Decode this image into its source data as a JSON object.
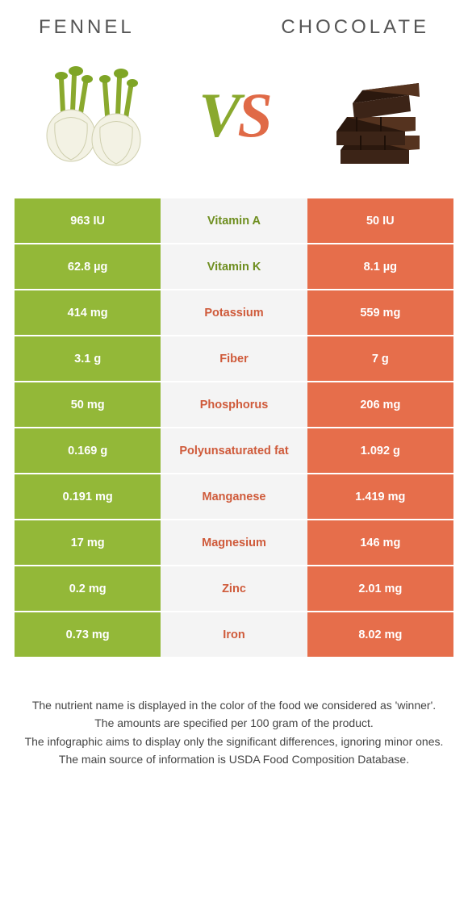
{
  "header": {
    "left": "Fennel",
    "right": "Chocolate"
  },
  "vs": {
    "v": "V",
    "s": "S"
  },
  "colors": {
    "fennel_bg": "#93b838",
    "chocolate_bg": "#e66e4b",
    "fennel_fg": "#6e8e1f",
    "chocolate_fg": "#cf5a3a",
    "mid_bg": "#f4f4f4",
    "page_bg": "#ffffff"
  },
  "table": {
    "rows": [
      {
        "nutrient": "Vitamin A",
        "left": "963 IU",
        "right": "50 IU",
        "winner": "fennel"
      },
      {
        "nutrient": "Vitamin K",
        "left": "62.8 µg",
        "right": "8.1 µg",
        "winner": "fennel"
      },
      {
        "nutrient": "Potassium",
        "left": "414 mg",
        "right": "559 mg",
        "winner": "chocolate"
      },
      {
        "nutrient": "Fiber",
        "left": "3.1 g",
        "right": "7 g",
        "winner": "chocolate"
      },
      {
        "nutrient": "Phosphorus",
        "left": "50 mg",
        "right": "206 mg",
        "winner": "chocolate"
      },
      {
        "nutrient": "Polyunsaturated fat",
        "left": "0.169 g",
        "right": "1.092 g",
        "winner": "chocolate"
      },
      {
        "nutrient": "Manganese",
        "left": "0.191 mg",
        "right": "1.419 mg",
        "winner": "chocolate"
      },
      {
        "nutrient": "Magnesium",
        "left": "17 mg",
        "right": "146 mg",
        "winner": "chocolate"
      },
      {
        "nutrient": "Zinc",
        "left": "0.2 mg",
        "right": "2.01 mg",
        "winner": "chocolate"
      },
      {
        "nutrient": "Iron",
        "left": "0.73 mg",
        "right": "8.02 mg",
        "winner": "chocolate"
      }
    ]
  },
  "footer": {
    "line1": "The nutrient name is displayed in the color of the food we considered as 'winner'.",
    "line2": "The amounts are specified per 100 gram of the product.",
    "line3": "The infographic aims to display only the significant differences, ignoring minor ones.",
    "line4": "The main source of information is USDA Food Composition Database."
  }
}
